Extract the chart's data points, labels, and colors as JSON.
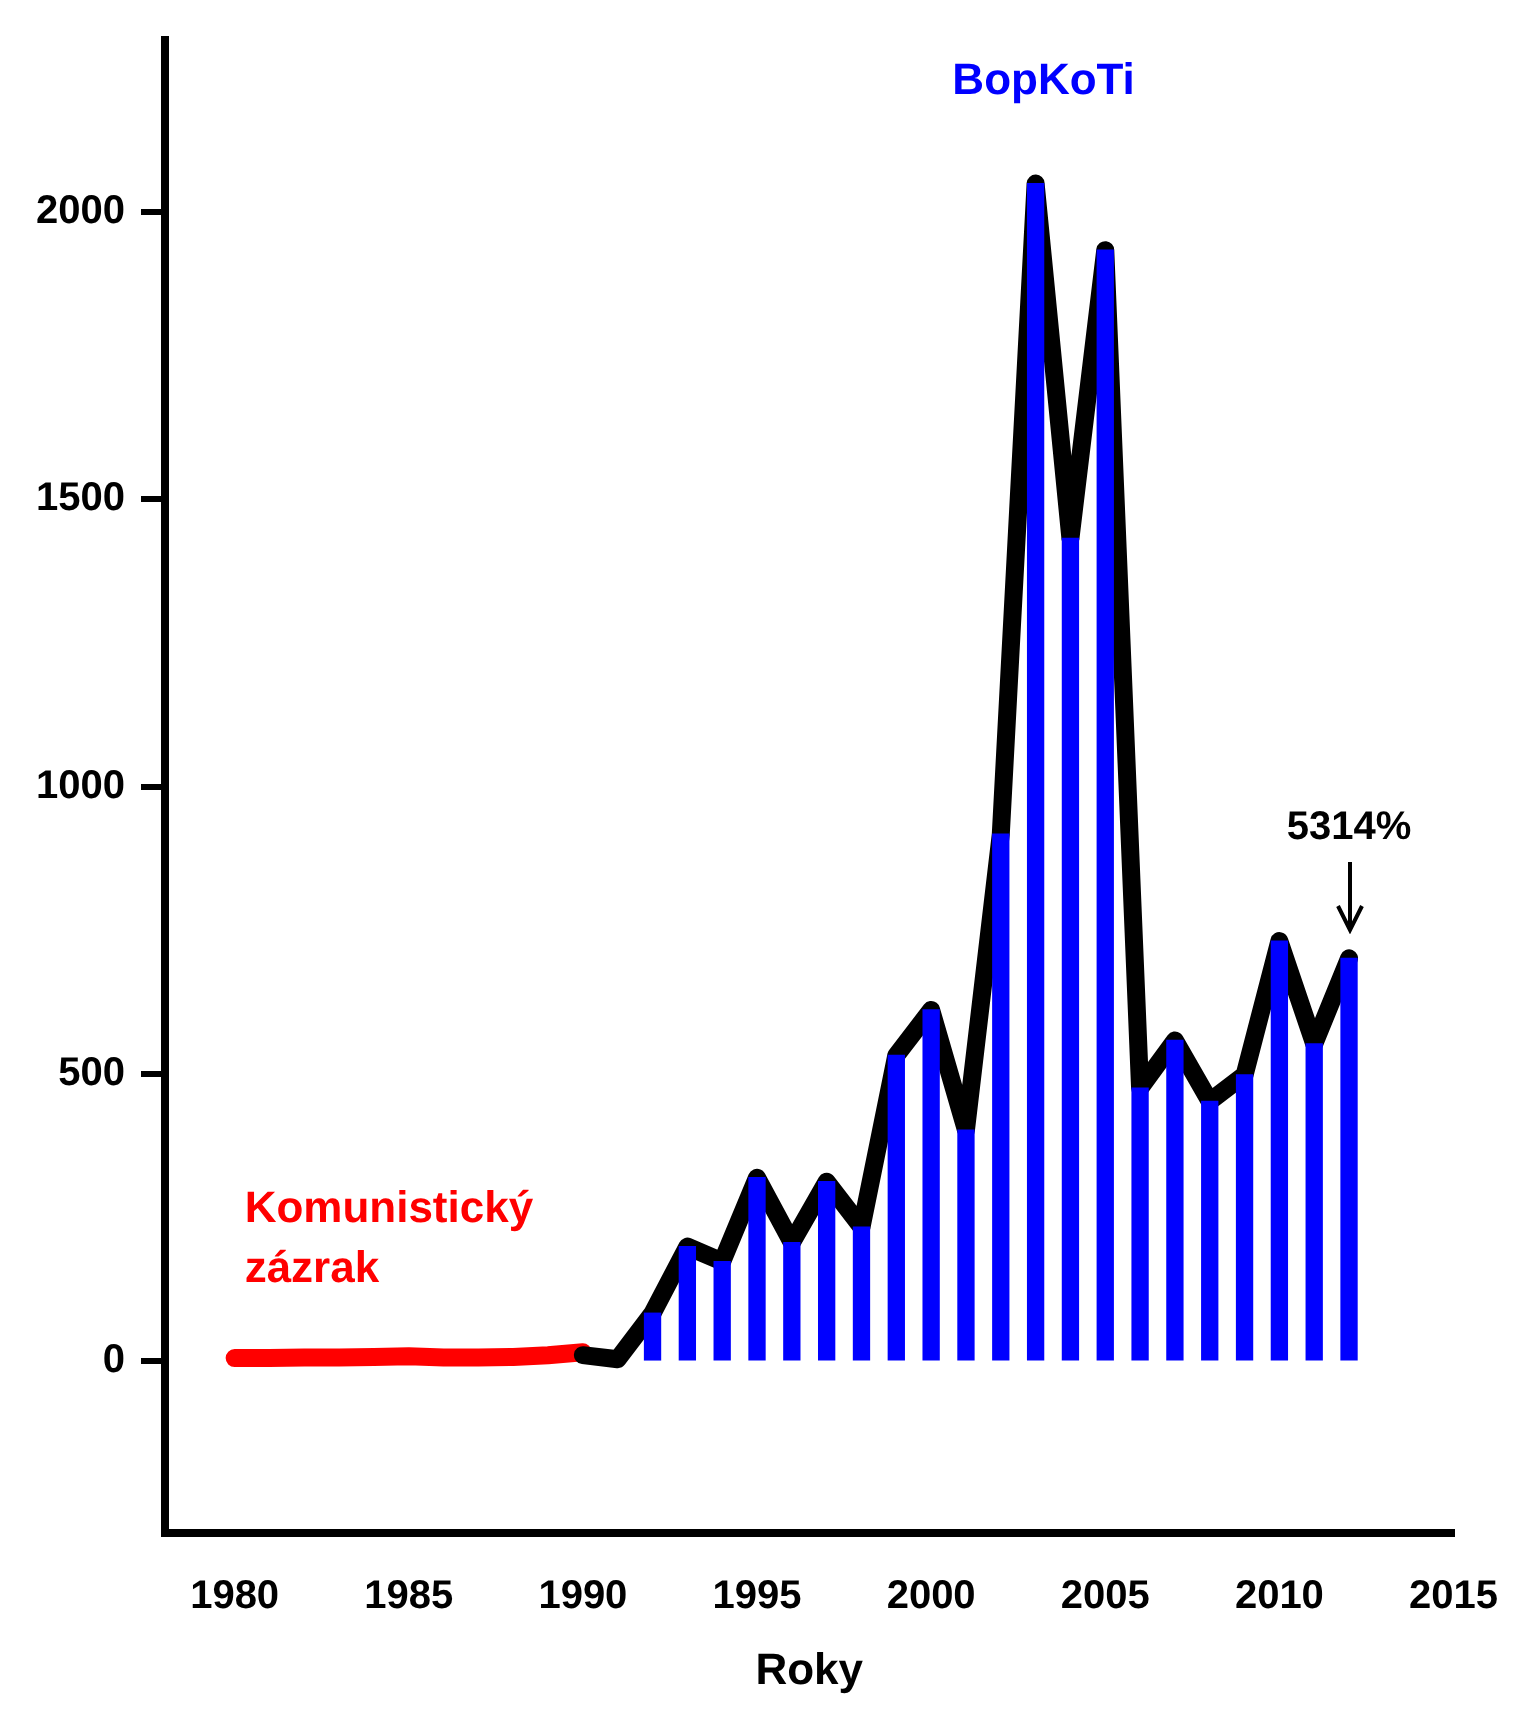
{
  "chart_data": {
    "type": "line",
    "xlabel": "Roky",
    "xlim": [
      1978,
      2015
    ],
    "xticks": [
      1980,
      1985,
      1990,
      1995,
      2000,
      2005,
      2010,
      2015
    ],
    "ylim": [
      -300,
      2300
    ],
    "yticks": [
      0,
      500,
      1000,
      1500,
      2000
    ],
    "grid": false,
    "legend": false,
    "marker": "none",
    "line_style": "solid",
    "series": [
      {
        "type": "bar",
        "name": "BopKoTi",
        "color": "#0000ff",
        "x": [
          1992,
          1993,
          1994,
          1995,
          1996,
          1997,
          1998,
          1999,
          2000,
          2001,
          2002,
          2003,
          2004,
          2005,
          2006,
          2007,
          2008,
          2009,
          2010,
          2011,
          2012
        ],
        "values": [
          83,
          199,
          173,
          319,
          206,
          312,
          233,
          532,
          611,
          402,
          917,
          2050,
          1432,
          1934,
          475,
          558,
          452,
          498,
          731,
          552,
          701
        ]
      },
      {
        "color": "#000000",
        "x": [
          1990,
          1991,
          1992,
          1993,
          1994,
          1995,
          1996,
          1997,
          1998,
          1999,
          2000,
          2001,
          2002,
          2003,
          2004,
          2005,
          2006,
          2007,
          2008,
          2009,
          2010,
          2011,
          2012
        ],
        "values": [
          10,
          3,
          83,
          199,
          173,
          319,
          206,
          312,
          233,
          532,
          611,
          402,
          917,
          2050,
          1432,
          1934,
          475,
          558,
          452,
          498,
          731,
          552,
          701
        ]
      },
      {
        "name": "Komunistický zázrak",
        "color": "#ff0000",
        "x": [
          1980,
          1981,
          1982,
          1983,
          1984,
          1985,
          1986,
          1987,
          1988,
          1989,
          1990
        ],
        "values": [
          5,
          5,
          6,
          6,
          7,
          8,
          6,
          6,
          7,
          10,
          15
        ]
      }
    ],
    "annotations": [
      {
        "text": "5314%",
        "x": 2012,
        "y": 701
      }
    ]
  }
}
